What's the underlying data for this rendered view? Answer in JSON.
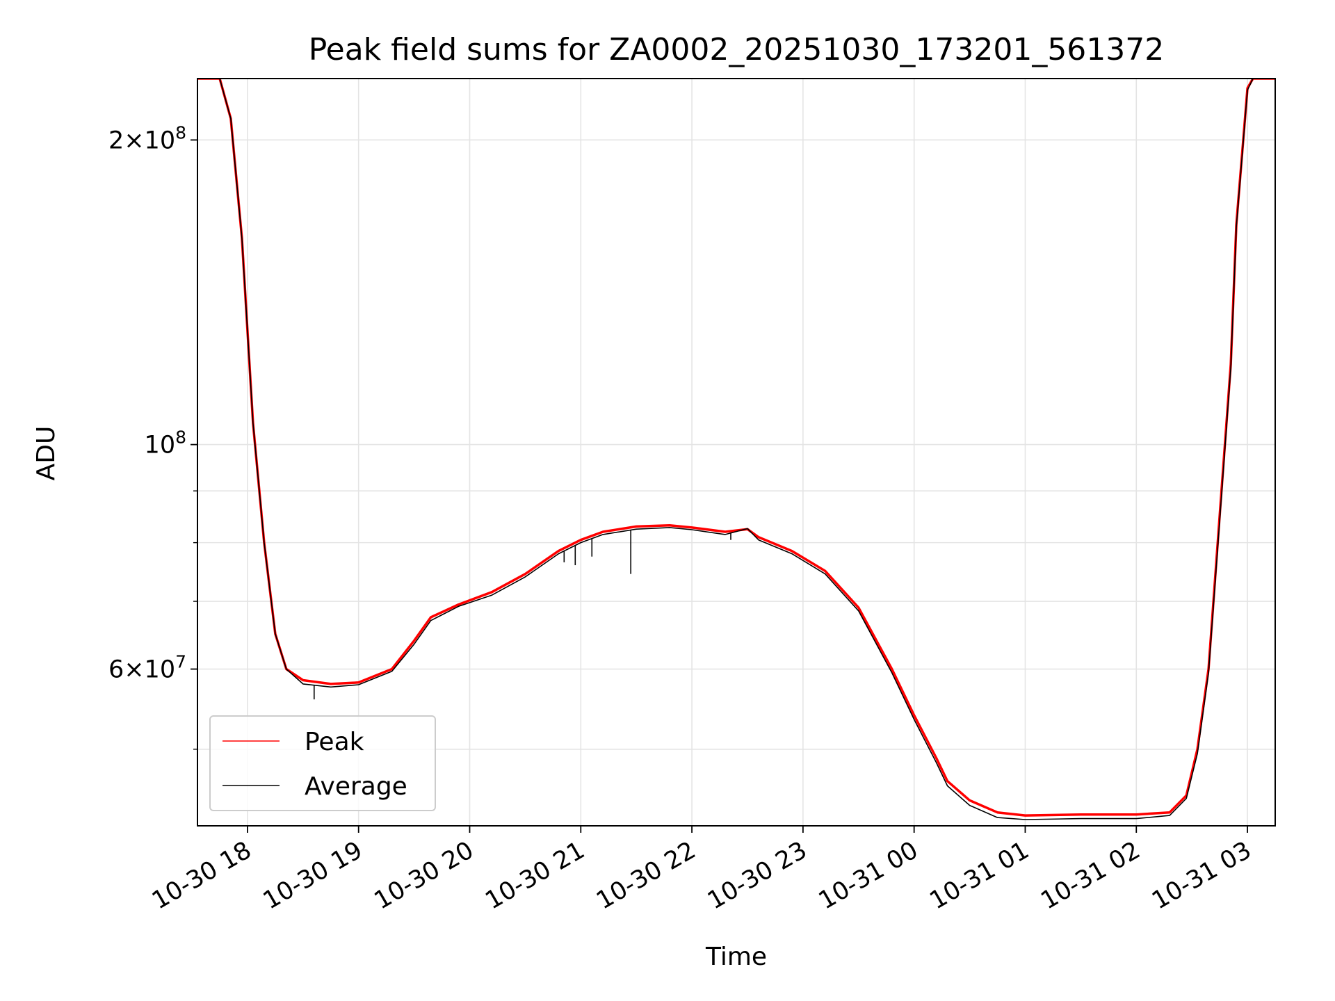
{
  "chart_data": {
    "type": "line",
    "title": "Peak field sums for ZA0002_20251030_173201_561372",
    "xlabel": "Time",
    "ylabel": "ADU",
    "yscale": "log",
    "ylim": [
      42000000,
      230000000
    ],
    "xlim_hours": [
      17.55,
      27.25
    ],
    "grid": true,
    "legend_position": "lower-left",
    "x_ticks": [
      {
        "hour": 18,
        "label": "10-30 18"
      },
      {
        "hour": 19,
        "label": "10-30 19"
      },
      {
        "hour": 20,
        "label": "10-30 20"
      },
      {
        "hour": 21,
        "label": "10-30 21"
      },
      {
        "hour": 22,
        "label": "10-30 22"
      },
      {
        "hour": 23,
        "label": "10-30 23"
      },
      {
        "hour": 24,
        "label": "10-31 00"
      },
      {
        "hour": 25,
        "label": "10-31 01"
      },
      {
        "hour": 26,
        "label": "10-31 02"
      },
      {
        "hour": 27,
        "label": "10-31 03"
      }
    ],
    "y_ticks": [
      {
        "value": 60000000,
        "mantissa": "6",
        "exponent": "7"
      },
      {
        "value": 100000000,
        "mantissa": "",
        "exponent": "8"
      },
      {
        "value": 200000000,
        "mantissa": "2",
        "exponent": "8"
      }
    ],
    "y_minor_ticks": [
      50000000,
      70000000,
      80000000,
      90000000
    ],
    "series": [
      {
        "name": "Peak",
        "color": "#ff0000",
        "points": [
          [
            17.55,
            230000000
          ],
          [
            17.75,
            230000000
          ],
          [
            17.85,
            210000000
          ],
          [
            17.95,
            160000000
          ],
          [
            18.05,
            105000000
          ],
          [
            18.15,
            80000000
          ],
          [
            18.25,
            65000000
          ],
          [
            18.35,
            60000000
          ],
          [
            18.5,
            58500000
          ],
          [
            18.75,
            58000000
          ],
          [
            19.0,
            58200000
          ],
          [
            19.3,
            60000000
          ],
          [
            19.5,
            64000000
          ],
          [
            19.65,
            67500000
          ],
          [
            19.9,
            69500000
          ],
          [
            20.2,
            71500000
          ],
          [
            20.5,
            74500000
          ],
          [
            20.8,
            78500000
          ],
          [
            21.0,
            80500000
          ],
          [
            21.2,
            82000000
          ],
          [
            21.5,
            83000000
          ],
          [
            21.8,
            83200000
          ],
          [
            22.0,
            82800000
          ],
          [
            22.3,
            82000000
          ],
          [
            22.5,
            82500000
          ],
          [
            22.6,
            81000000
          ],
          [
            22.9,
            78500000
          ],
          [
            23.2,
            75000000
          ],
          [
            23.5,
            69000000
          ],
          [
            23.8,
            60000000
          ],
          [
            24.0,
            54000000
          ],
          [
            24.2,
            49000000
          ],
          [
            24.3,
            46500000
          ],
          [
            24.5,
            44500000
          ],
          [
            24.75,
            43300000
          ],
          [
            25.0,
            43000000
          ],
          [
            25.5,
            43100000
          ],
          [
            26.0,
            43100000
          ],
          [
            26.3,
            43300000
          ],
          [
            26.45,
            45000000
          ],
          [
            26.55,
            50000000
          ],
          [
            26.65,
            60000000
          ],
          [
            26.75,
            85000000
          ],
          [
            26.85,
            120000000
          ],
          [
            26.9,
            165000000
          ],
          [
            27.0,
            225000000
          ],
          [
            27.05,
            230000000
          ],
          [
            27.25,
            230000000
          ]
        ]
      },
      {
        "name": "Average",
        "color": "#000000",
        "points": [
          [
            17.55,
            230000000
          ],
          [
            17.75,
            230000000
          ],
          [
            17.85,
            210000000
          ],
          [
            17.95,
            160000000
          ],
          [
            18.05,
            105000000
          ],
          [
            18.15,
            80000000
          ],
          [
            18.25,
            65000000
          ],
          [
            18.35,
            60000000
          ],
          [
            18.5,
            58000000
          ],
          [
            18.75,
            57600000
          ],
          [
            19.0,
            57900000
          ],
          [
            19.3,
            59700000
          ],
          [
            19.5,
            63500000
          ],
          [
            19.65,
            67000000
          ],
          [
            19.9,
            69200000
          ],
          [
            20.2,
            71000000
          ],
          [
            20.5,
            74000000
          ],
          [
            20.8,
            78000000
          ],
          [
            21.0,
            80000000
          ],
          [
            21.2,
            81500000
          ],
          [
            21.5,
            82500000
          ],
          [
            21.8,
            82800000
          ],
          [
            22.0,
            82400000
          ],
          [
            22.3,
            81500000
          ],
          [
            22.5,
            82600000
          ],
          [
            22.6,
            80500000
          ],
          [
            22.9,
            78000000
          ],
          [
            23.2,
            74500000
          ],
          [
            23.5,
            68500000
          ],
          [
            23.8,
            59500000
          ],
          [
            24.0,
            53500000
          ],
          [
            24.2,
            48500000
          ],
          [
            24.3,
            46000000
          ],
          [
            24.5,
            44000000
          ],
          [
            24.75,
            42800000
          ],
          [
            25.0,
            42600000
          ],
          [
            25.5,
            42700000
          ],
          [
            26.0,
            42700000
          ],
          [
            26.3,
            43000000
          ],
          [
            26.45,
            44700000
          ],
          [
            26.55,
            49500000
          ],
          [
            26.65,
            59500000
          ],
          [
            26.75,
            84000000
          ],
          [
            26.85,
            119000000
          ],
          [
            26.9,
            164000000
          ],
          [
            27.0,
            224000000
          ],
          [
            27.05,
            230000000
          ],
          [
            27.25,
            230000000
          ]
        ]
      }
    ],
    "dropouts": [
      {
        "hour": 18.6,
        "to": 56000000
      },
      {
        "hour": 20.85,
        "to": 76500000
      },
      {
        "hour": 20.95,
        "to": 76000000
      },
      {
        "hour": 21.1,
        "to": 77500000
      },
      {
        "hour": 21.45,
        "to": 74500000
      },
      {
        "hour": 22.35,
        "to": 80500000
      }
    ]
  }
}
